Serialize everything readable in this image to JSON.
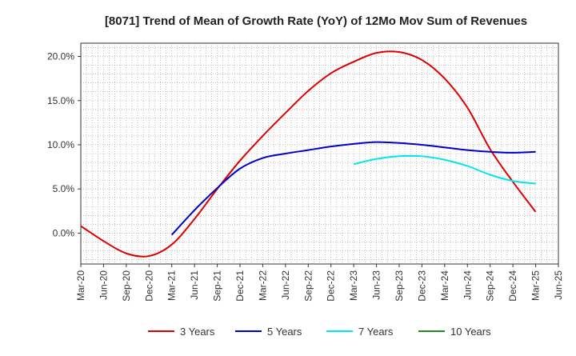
{
  "chart_data": {
    "type": "line",
    "title": "[8071]  Trend of Mean of Growth Rate (YoY) of 12Mo Mov Sum of Revenues",
    "xlabel": "",
    "ylabel": "",
    "ylim": [
      -3.5,
      21.5
    ],
    "yticks": [
      0,
      5,
      10,
      15,
      20
    ],
    "ytick_labels": [
      "0.0%",
      "5.0%",
      "10.0%",
      "15.0%",
      "20.0%"
    ],
    "categories": [
      "Mar-20",
      "Jun-20",
      "Sep-20",
      "Dec-20",
      "Mar-21",
      "Jun-21",
      "Sep-21",
      "Dec-21",
      "Mar-22",
      "Jun-22",
      "Sep-22",
      "Dec-22",
      "Mar-23",
      "Jun-23",
      "Sep-23",
      "Dec-23",
      "Mar-24",
      "Jun-24",
      "Sep-24",
      "Dec-24",
      "Mar-25",
      "Jun-25"
    ],
    "grid": true,
    "legend_position": "bottom",
    "series": [
      {
        "name": "3 Years",
        "color": "#dd0000",
        "values": [
          0.8,
          -0.9,
          -2.3,
          -2.6,
          -1.3,
          1.6,
          5.0,
          8.2,
          11.0,
          13.6,
          16.1,
          18.1,
          19.4,
          20.4,
          20.5,
          19.6,
          17.5,
          14.2,
          9.5,
          5.8,
          2.4,
          null
        ]
      },
      {
        "name": "5 Years",
        "color": "#0000cc",
        "values": [
          null,
          null,
          null,
          null,
          -0.2,
          2.6,
          5.1,
          7.3,
          8.5,
          9.0,
          9.4,
          9.8,
          10.1,
          10.3,
          10.2,
          10.0,
          9.7,
          9.4,
          9.2,
          9.1,
          9.2,
          null
        ]
      },
      {
        "name": "7 Years",
        "color": "#00e5ee",
        "values": [
          null,
          null,
          null,
          null,
          null,
          null,
          null,
          null,
          null,
          null,
          null,
          null,
          7.8,
          8.4,
          8.7,
          8.7,
          8.3,
          7.6,
          6.6,
          5.9,
          5.6,
          null
        ]
      },
      {
        "name": "10 Years",
        "color": "#228b22",
        "values": [
          null,
          null,
          null,
          null,
          null,
          null,
          null,
          null,
          null,
          null,
          null,
          null,
          null,
          null,
          null,
          null,
          null,
          null,
          null,
          null,
          null,
          null
        ]
      }
    ]
  }
}
